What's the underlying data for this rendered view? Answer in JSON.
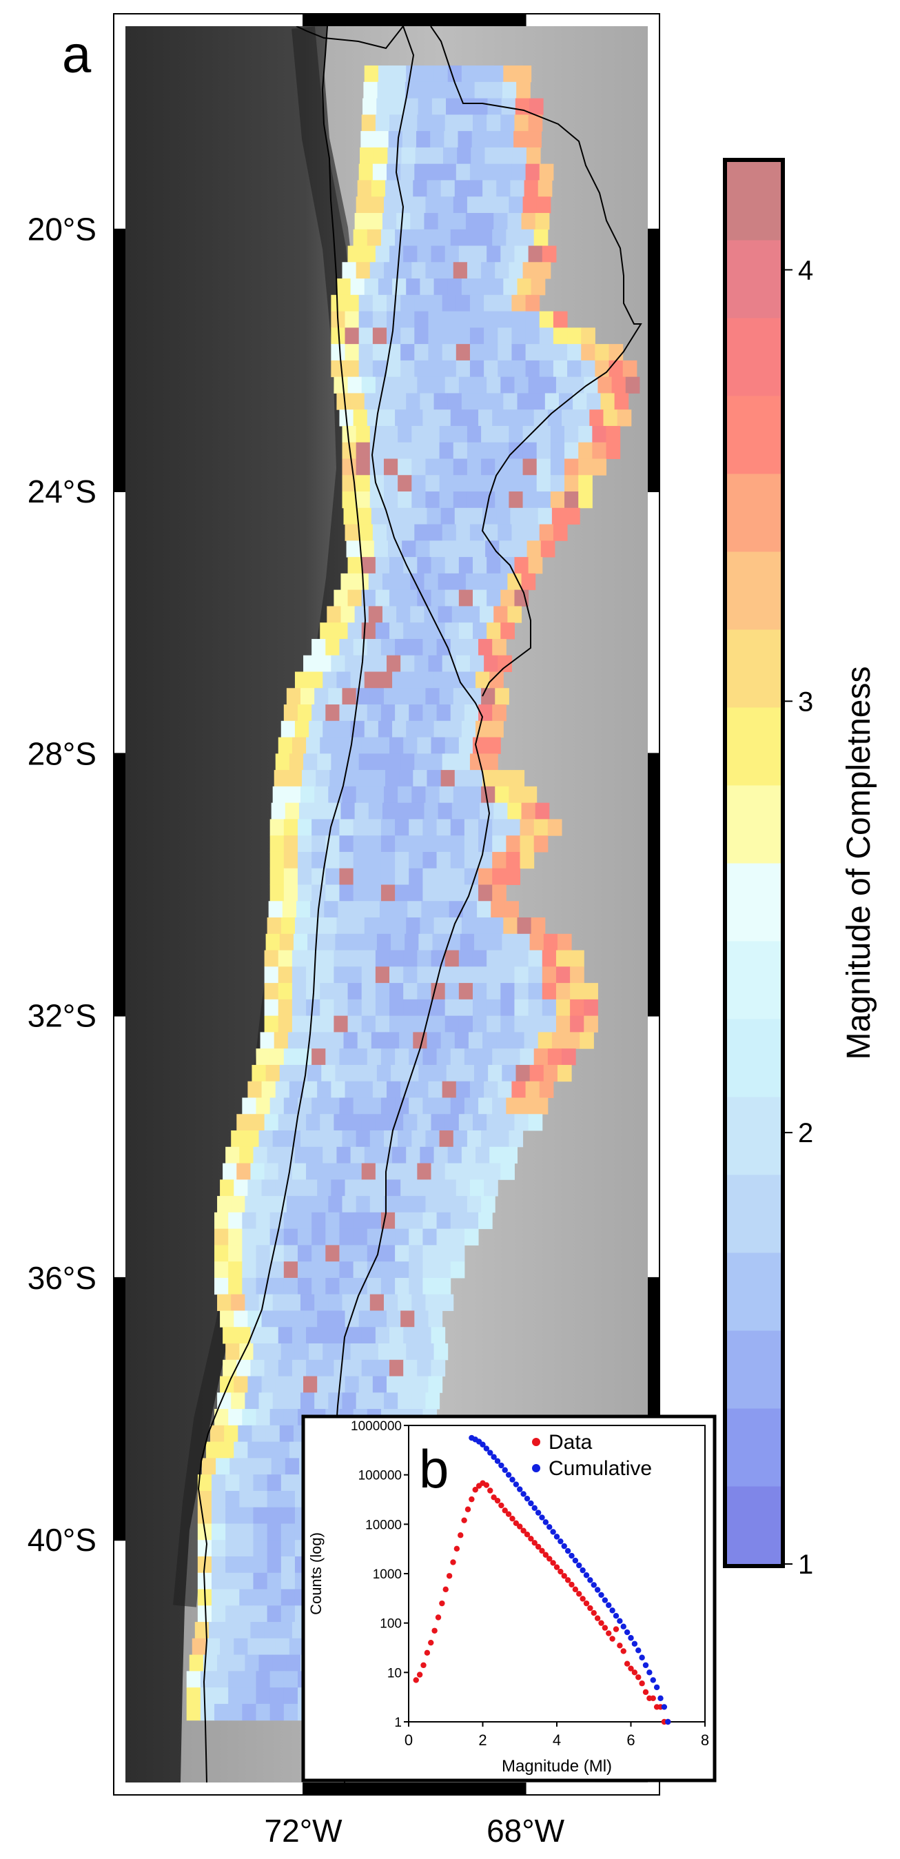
{
  "panel_a_label": "a",
  "panel_b_label": "b",
  "colors": {
    "map_frame": "#000000",
    "ocean_dark": "#3a3a3a",
    "land_light": "#b5b5b5"
  },
  "chart_data": [
    {
      "type": "heatmap",
      "id": "mc-map",
      "title": "",
      "xlabel": "",
      "ylabel": "",
      "x_ticks": [
        "72°W",
        "68°W"
      ],
      "x_tick_values": [
        -72,
        -68
      ],
      "y_ticks": [
        "20°S",
        "24°S",
        "28°S",
        "32°S",
        "36°S",
        "40°S"
      ],
      "y_tick_values": [
        -20,
        -24,
        -28,
        -32,
        -36,
        -40
      ],
      "xlim": [
        -75.2,
        -65.8
      ],
      "ylim": [
        -43.7,
        -16.9
      ],
      "colorbar": {
        "label": "Magnitude of Completness",
        "ticks": [
          "1",
          "2",
          "3",
          "4"
        ],
        "tick_values": [
          1,
          2,
          3,
          4
        ],
        "range": [
          1,
          4.25
        ],
        "colors": [
          "#7f86e8",
          "#8b9bf0",
          "#9bb1f3",
          "#abc6f6",
          "#bcd8f7",
          "#c8e6f9",
          "#cdf1fb",
          "#d8f7fc",
          "#e9fdfd",
          "#fdfcab",
          "#fdf27f",
          "#fcdd82",
          "#fdc586",
          "#fda881",
          "#fe8a7d",
          "#f88182",
          "#e8808a",
          "#cc8083"
        ]
      }
    },
    {
      "type": "scatter",
      "id": "fmd-inset",
      "title": "",
      "xlabel": "Magnitude (Ml)",
      "ylabel": "Counts (log)",
      "xlim": [
        0,
        8
      ],
      "ylim": [
        1,
        1000000
      ],
      "yscale": "log",
      "grid": false,
      "legend": "top-right",
      "x_ticks": [
        "0",
        "2",
        "4",
        "6",
        "8"
      ],
      "x_tick_values": [
        0,
        2,
        4,
        6,
        8
      ],
      "y_ticks": [
        "1",
        "10",
        "100",
        "1000",
        "10000",
        "100000",
        "1000000"
      ],
      "y_tick_values": [
        1,
        10,
        100,
        1000,
        10000,
        100000,
        1000000
      ],
      "series": [
        {
          "name": "Data",
          "color": "#e8141c",
          "x": [
            0.2,
            0.3,
            0.4,
            0.5,
            0.6,
            0.7,
            0.8,
            0.9,
            1.0,
            1.1,
            1.2,
            1.3,
            1.4,
            1.5,
            1.6,
            1.7,
            1.8,
            1.9,
            2.0,
            2.1,
            2.2,
            2.3,
            2.4,
            2.5,
            2.6,
            2.7,
            2.8,
            2.9,
            3.0,
            3.1,
            3.2,
            3.3,
            3.4,
            3.5,
            3.6,
            3.7,
            3.8,
            3.9,
            4.0,
            4.1,
            4.2,
            4.3,
            4.4,
            4.5,
            4.6,
            4.7,
            4.8,
            4.9,
            5.0,
            5.1,
            5.2,
            5.3,
            5.4,
            5.5,
            5.6,
            5.7,
            5.8,
            5.9,
            6.0,
            6.1,
            6.2,
            6.3,
            6.4,
            6.5,
            6.6,
            6.7,
            6.8,
            6.9,
            7.0
          ],
          "y": [
            7,
            9,
            14,
            25,
            40,
            70,
            130,
            250,
            480,
            900,
            1700,
            3200,
            6000,
            12000,
            20000,
            32000,
            50000,
            60000,
            68000,
            62000,
            48000,
            35000,
            30000,
            24000,
            19000,
            16000,
            13000,
            10500,
            9000,
            7400,
            6200,
            5100,
            4200,
            3500,
            2900,
            2400,
            2000,
            1650,
            1350,
            1100,
            900,
            740,
            600,
            480,
            390,
            310,
            250,
            200,
            160,
            125,
            100,
            80,
            62,
            48,
            75,
            35,
            27,
            15,
            12,
            10,
            8,
            6,
            4,
            3,
            3,
            2,
            2,
            1,
            1
          ]
        },
        {
          "name": "Cumulative",
          "color": "#1020e0",
          "x": [
            1.7,
            1.8,
            1.9,
            2.0,
            2.1,
            2.2,
            2.3,
            2.4,
            2.5,
            2.6,
            2.7,
            2.8,
            2.9,
            3.0,
            3.1,
            3.2,
            3.3,
            3.4,
            3.5,
            3.6,
            3.7,
            3.8,
            3.9,
            4.0,
            4.1,
            4.2,
            4.3,
            4.4,
            4.5,
            4.6,
            4.7,
            4.8,
            4.9,
            5.0,
            5.1,
            5.2,
            5.3,
            5.4,
            5.5,
            5.6,
            5.7,
            5.8,
            5.9,
            6.0,
            6.1,
            6.2,
            6.3,
            6.4,
            6.5,
            6.6,
            6.7,
            6.8,
            6.9,
            7.0
          ],
          "y": [
            560000,
            520000,
            470000,
            410000,
            340000,
            280000,
            230000,
            190000,
            155000,
            125000,
            100000,
            80000,
            64000,
            51000,
            41000,
            33000,
            26500,
            21300,
            17100,
            13700,
            11000,
            8800,
            7000,
            5600,
            4500,
            3600,
            2880,
            2300,
            1840,
            1470,
            1170,
            930,
            740,
            590,
            470,
            370,
            290,
            230,
            180,
            140,
            110,
            85,
            65,
            50,
            38,
            28,
            20,
            14,
            10,
            7,
            5,
            3,
            2,
            1
          ]
        }
      ]
    }
  ]
}
